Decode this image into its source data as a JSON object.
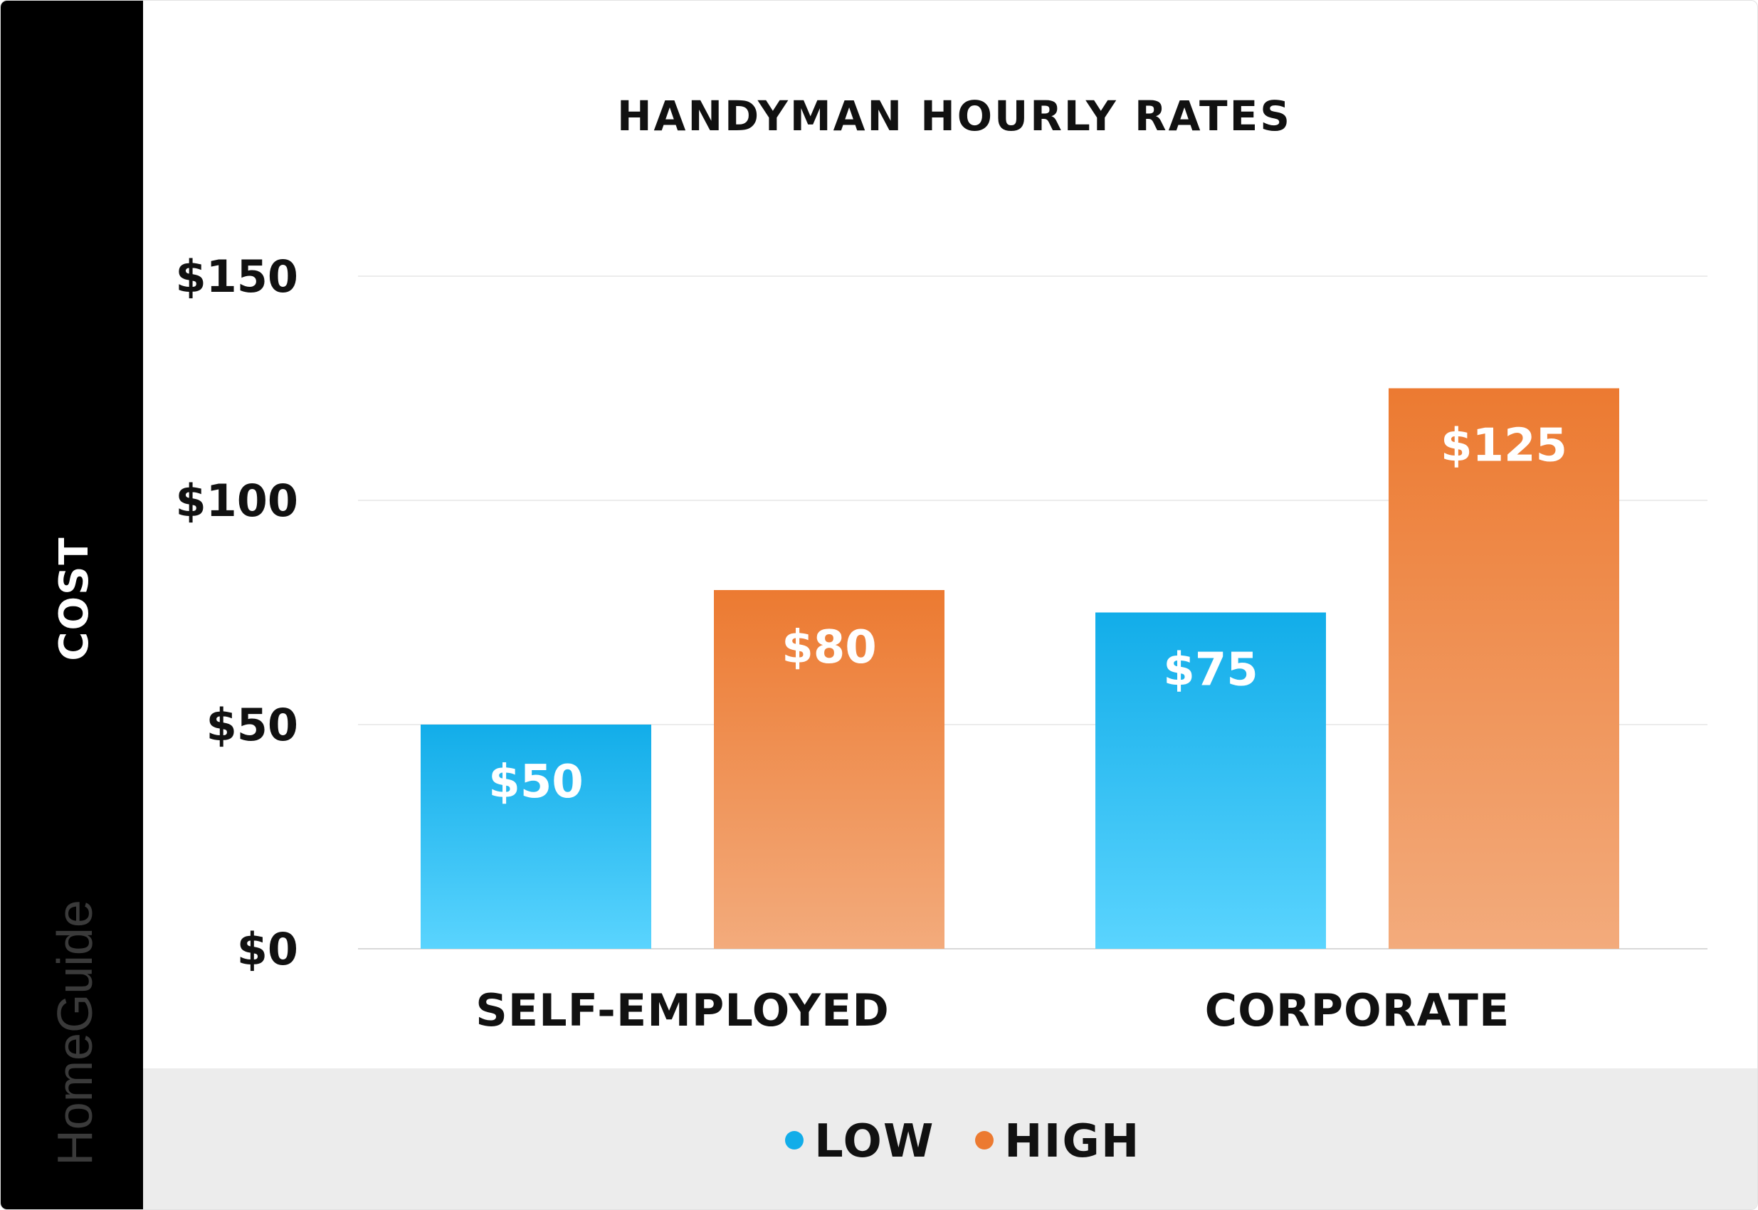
{
  "brand": {
    "name": "HomeGuide"
  },
  "chart_data": {
    "type": "bar",
    "title": "HANDYMAN HOURLY RATES",
    "ylabel": "COST",
    "xlabel": "",
    "categories": [
      "SELF-EMPLOYED",
      "CORPORATE"
    ],
    "series": [
      {
        "name": "LOW",
        "values": [
          50,
          75
        ],
        "color": "#12ade9",
        "color_light": "#5ad4fe"
      },
      {
        "name": "HIGH",
        "values": [
          80,
          125
        ],
        "color": "#ec7a31",
        "color_light": "#f3ab7c"
      }
    ],
    "data_labels": [
      [
        "$50",
        "$75"
      ],
      [
        "$80",
        "$125"
      ]
    ],
    "yticks": [
      0,
      50,
      100,
      150
    ],
    "ytick_labels": [
      "$0",
      "$50",
      "$100",
      "$150"
    ],
    "ylim": [
      0,
      150
    ],
    "grid": true,
    "legend_position": "bottom"
  }
}
